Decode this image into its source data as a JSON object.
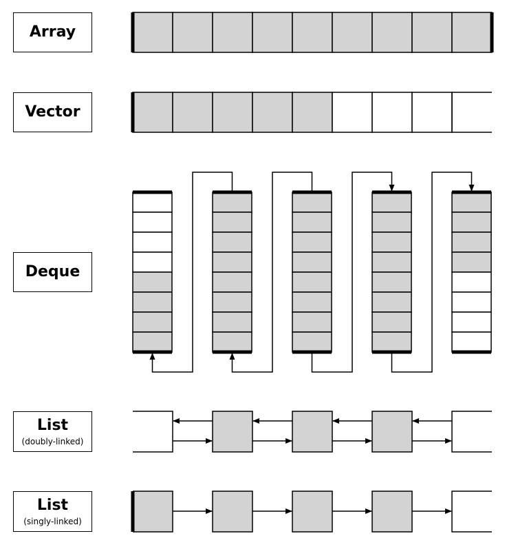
{
  "colors": {
    "filled": "#d3d3d3",
    "empty": "#ffffff",
    "stroke": "#000000"
  },
  "labels": {
    "array": "Array",
    "vector": "Vector",
    "deque": "Deque",
    "list_doubly": "List",
    "list_doubly_sub": "(doubly-linked)",
    "list_singly": "List",
    "list_singly_sub": "(singly-linked)"
  },
  "array": {
    "slots": 9,
    "filled": 9
  },
  "vector": {
    "slots": 9,
    "filled": 5
  },
  "deque": {
    "blocks": [
      {
        "filled": [
          false,
          false,
          false,
          false,
          true,
          true,
          true,
          true
        ]
      },
      {
        "filled": [
          true,
          true,
          true,
          true,
          true,
          true,
          true,
          true
        ]
      },
      {
        "filled": [
          true,
          true,
          true,
          true,
          true,
          true,
          true,
          true
        ]
      },
      {
        "filled": [
          true,
          true,
          true,
          true,
          true,
          true,
          true,
          true
        ]
      },
      {
        "filled": [
          true,
          true,
          true,
          true,
          false,
          false,
          false,
          false
        ]
      }
    ]
  },
  "list_doubly": {
    "nodes": [
      false,
      true,
      true,
      true,
      false
    ]
  },
  "list_singly": {
    "nodes": [
      true,
      true,
      true,
      true,
      false
    ]
  }
}
